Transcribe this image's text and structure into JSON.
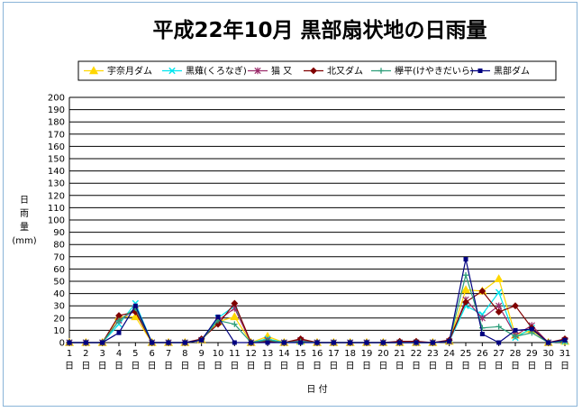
{
  "chart_data": {
    "type": "line",
    "title": "平成22年10月 黒部扇状地の日雨量",
    "xlabel": "日 付",
    "ylabel_lines": [
      "日",
      "雨",
      "量",
      "(mm)"
    ],
    "ylim": [
      0,
      200
    ],
    "ytick_step": 10,
    "grid": true,
    "legend_position": "top",
    "x": [
      1,
      2,
      3,
      4,
      5,
      6,
      7,
      8,
      9,
      10,
      11,
      12,
      13,
      14,
      15,
      16,
      17,
      18,
      19,
      20,
      21,
      22,
      23,
      24,
      25,
      26,
      27,
      28,
      29,
      30,
      31
    ],
    "x_tick_labels": [
      "1日",
      "2日",
      "3日",
      "4日",
      "5日",
      "6日",
      "7日",
      "8日",
      "9日",
      "10日",
      "11日",
      "12日",
      "13日",
      "14日",
      "15日",
      "16日",
      "17日",
      "18日",
      "19日",
      "20日",
      "21日",
      "22日",
      "23日",
      "24日",
      "25日",
      "26日",
      "27日",
      "28日",
      "29日",
      "30日",
      "31日"
    ],
    "series": [
      {
        "name": "宇奈月ダム",
        "color": "#ffd700",
        "marker": "triangle",
        "values": [
          0,
          0,
          0,
          21,
          21,
          0,
          0,
          0,
          2,
          17,
          21,
          0,
          5,
          0,
          1,
          0,
          0,
          0,
          0,
          0,
          0,
          0,
          0,
          1,
          43,
          42,
          52,
          6,
          10,
          0,
          1
        ]
      },
      {
        "name": "黒薙(くろなぎ)",
        "color": "#00e5ee",
        "marker": "xmark",
        "values": [
          0,
          0,
          0,
          15,
          32,
          0,
          0,
          0,
          2,
          20,
          30,
          0,
          3,
          0,
          1,
          0,
          0,
          0,
          0,
          0,
          0,
          0,
          0,
          1,
          30,
          23,
          41,
          4,
          12,
          0,
          1
        ]
      },
      {
        "name": "猫 又",
        "color": "#9b2d6b",
        "marker": "star",
        "values": [
          0,
          0,
          0,
          18,
          27,
          0,
          0,
          0,
          2,
          18,
          28,
          0,
          2,
          0,
          2,
          0,
          0,
          0,
          0,
          0,
          0,
          0,
          0,
          1,
          35,
          20,
          30,
          6,
          14,
          0,
          2
        ]
      },
      {
        "name": "北又ダム",
        "color": "#800000",
        "marker": "diamond",
        "values": [
          0,
          0,
          0,
          22,
          25,
          0,
          0,
          0,
          3,
          15,
          32,
          0,
          1,
          0,
          3,
          0,
          0,
          0,
          0,
          0,
          1,
          1,
          0,
          2,
          33,
          42,
          25,
          30,
          12,
          0,
          3
        ]
      },
      {
        "name": "欅平(けやきだいら)",
        "color": "#2e9e7a",
        "marker": "plus",
        "values": [
          0,
          0,
          0,
          18,
          28,
          0,
          0,
          0,
          2,
          18,
          15,
          0,
          2,
          0,
          1,
          0,
          0,
          0,
          0,
          0,
          0,
          0,
          0,
          1,
          55,
          12,
          13,
          5,
          8,
          0,
          1
        ]
      },
      {
        "name": "黒部ダム",
        "color": "#000080",
        "marker": "square",
        "values": [
          0,
          0,
          0,
          8,
          30,
          0,
          0,
          0,
          2,
          21,
          0,
          0,
          0,
          0,
          0,
          0,
          0,
          0,
          0,
          0,
          0,
          0,
          0,
          1,
          68,
          7,
          0,
          10,
          11,
          0,
          2
        ]
      }
    ]
  }
}
